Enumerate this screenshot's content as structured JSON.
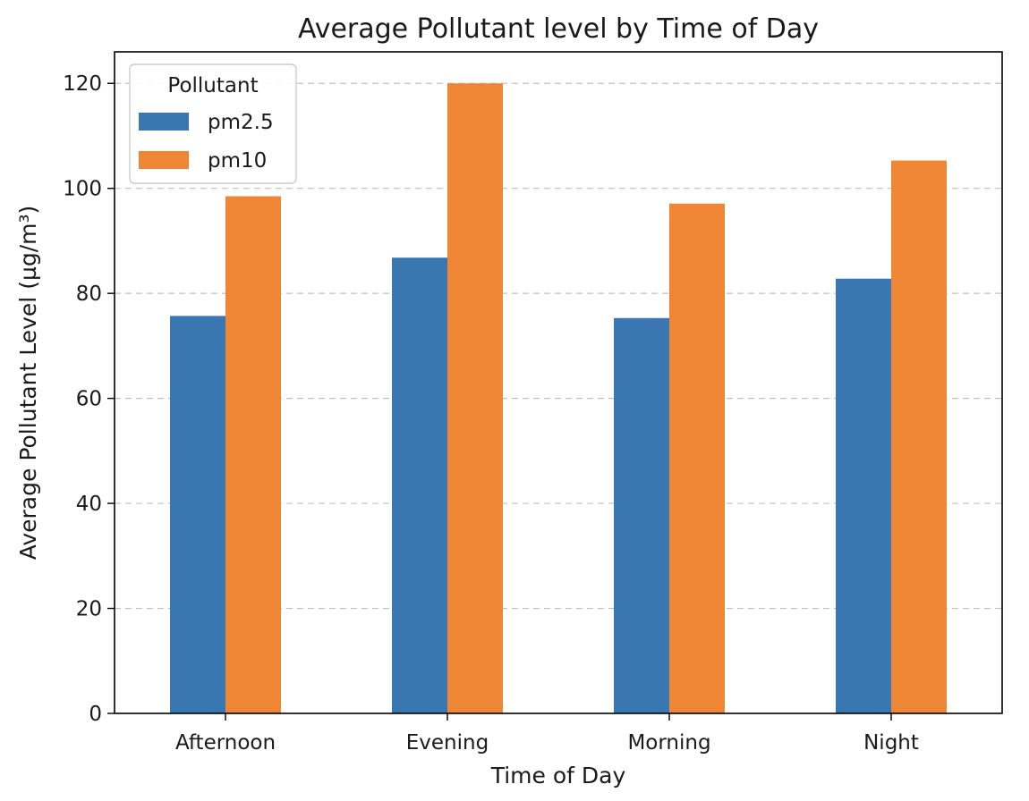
{
  "chart_data": {
    "type": "bar",
    "title": "Average Pollutant level by Time of Day",
    "xlabel": "Time of Day",
    "ylabel": "Average Pollutant Level (µg/m³)",
    "categories": [
      "Afternoon",
      "Evening",
      "Morning",
      "Night"
    ],
    "series": [
      {
        "name": "pm2.5",
        "color": "#3a76af",
        "values": [
          75.7,
          86.8,
          75.3,
          82.8
        ]
      },
      {
        "name": "pm10",
        "color": "#ef8636",
        "values": [
          98.5,
          120.0,
          97.1,
          105.3
        ]
      }
    ],
    "ylim": [
      0,
      126
    ],
    "yticks": [
      0,
      20,
      40,
      60,
      80,
      100,
      120
    ],
    "grid": {
      "axis": "y",
      "style": "dashed"
    },
    "legend": {
      "title": "Pollutant",
      "position": "top-left"
    }
  }
}
